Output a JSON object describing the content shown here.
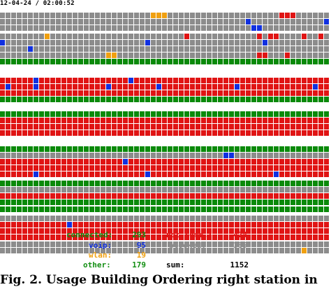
{
  "header": {
    "timestamp": "12-04-24 / 02:00:52"
  },
  "colors": {
    "connected": "#0a8a0a",
    "voip": "#1030e0",
    "wlan": "#f0a010",
    "not_comm": "#e01414",
    "blocked": "#8c8c8c",
    "other": "#138f13",
    "sum": "#000000"
  },
  "port_color_codes": {
    "g": "#8c8c8c",
    "r": "#e01414",
    "G": "#0a8a0a",
    "b": "#1030e0",
    "o": "#f0a010"
  },
  "rows": [
    "gggggggggggggggggggggggggggoooggggggggggggggggggggrrrggggggggggggg",
    "ggggggggggggggggggggggggggggggggggggggggggggbgggggggggggggbrggrrrr",
    "gggggggggggggggggggggggggggggggggggggggggggggbbggggggggggggggggggg",
    "ggggggggoggggggggggggggggggggggggrggggggggggggrgrrggggrggrggrrgggg",
    "bgggggggggggggggggggggggggbggggggggggggggggggggbgggggggggggrrggggg",
    "gggggbgggggggggggggggggggggggggggggggggggggggggggggggggggggggggggg",
    "gggggggggggggggggggoogggggggggggggggggggggggggrrgggrggggggggggggrg",
    "GGGGGGGGGGGGGGGGGGGGGGGGGGGGGGGGGGGGGGGGGGGGGGGGGGGGGGGGGGGGGGGG",
    "rrrrrrbrrrrrrrrrrrrrrrrbrrrrrrrrrrrrrrrrrrrrrrrrrrrrrrrrrrrrrrrr",
    "rbrrrrbrrrrrrrrrrrrbrrrrrrrrbrrrrrrrrrrrrrbrrrrrrrrrrrrrbrrrrrrr",
    "rrrrrrrrrrrrrrrrrrrrrrrrrrrrrrrrrrrrrrrrrrrrrrrrrrrrrrrrrrrrrrrr",
    "GGGGGGGGGGGGGGGGGGGGGGGGGGGGGGGGGGGGGGGGGGGGGGGGGGGGGGGGGGGGGGGG",
    "GGGGGGGGGGGGGGGGGGGGGGGGGGGGGGGGGGGGGGGGGGGGGGGGGGGGGGGGGGGGGGGG",
    "rrrrrrrrrrrrrrrrrrrrrrrrrrrrrrrrrrrrrrrrrrrrrrrrrrrrrrrrrrrrrrrr",
    "rrrrrrrrrrrrrrrrrrrrrrrrrrrrrrrrrrrrrrrrrrrrrrrrrrrrrrrrrrrrrrrr",
    "rrrrrrrrrrrrrrrrrrrrrrrrrrrrrrrrrrrrrrrrrrrrrrrrrrrrrrrrrrrrrrrr",
    "GGGGGGGGGGGGGGGGGGGGGGGGGGGGGGGGGGGGGGGGGGGGGGGGGGGGGGGGGGGGGGGG",
    "ggggggggggggggggggggggggggggggggggggggggbbgggggggggggggggggbgggg",
    "rrrrrrrrrrrrrrrrrrrrrrbrrrrrrrrrrrrrrrrrrrrrrrrrrrrrrrrrrrrrrrrr",
    "rrrrrrrrrrrrrrrrrrrrrrrrrrrrrrrrrrrrrrrrrrrrrrrrrrrrrrrrrrrrrrrr",
    "rrrrrrbrrrrrrrrrrrrrrrrrrrbrrrrrrrrrrrrrrrrrrrrrrbrrrrrrrrrrrbrr",
    "GGGGGGGGGGGGGGGGGGGGGGGGGGGGGGGGGGGGGGGGGGGGGGGGGGGGGGGGGGGGGGGG",
    "gggggggggggggggggggggggggggggggggggggggggggggggggggggggggggggggg",
    "rrrrrrrrrrrrrrrrrrrrrrrrrrrrrrrrrrrrrrrrrrrrrrrrrrrrrrrrrrrrrrrr",
    "GGGGGGGGGGGGGGGGGGGGGGGGGGGGGGGGGGGGGGGGGGGGGGGGGGGGGGGGGGGGGGGG",
    "GGGGGGGGGGGGGGGGGGGGGGGGGGGGGGGGGGGGGGGGGGGGGGGGGGGGGGGGGGGGGGGG",
    "gggggggggggggggggggggggggggggggggggggggggggggggggggggggggggggggg",
    "rrrrrrrrrrrrbrrrrrrrrrrrrrrrrrrrrrrrrrrrrrrrrrrrrrrrrrrrrrrbrrrr",
    "rrrrrrrrrrrrrrrrrrrrrrrrrrrrrrrrrrrrrrrrrrrrrrrrrrrrrrrrrrrrrrrr",
    "rrrrrrrrrrrrrrrrrrrrrrrrrrrrrrrrrrrrrrrrrrrrrrrrrrrrrrrrrrrrrrrr",
    "gggggggggggggggggggggggggggggggggggggggggggggggggggggggggggggggg",
    "ggggggggggggggggggggggggggggggggggggggggggggggggggggggoggggggggg"
  ],
  "stats": {
    "connected": {
      "label": "connected:",
      "value": "293"
    },
    "voip": {
      "label": "voip:",
      "value": "95"
    },
    "wlan": {
      "label": "wlan:",
      "value": "19"
    },
    "other": {
      "label": "other:",
      "value": "179"
    },
    "not_comm": {
      "label": "not comm.:",
      "value": "474"
    },
    "blocked": {
      "label": "blocked:",
      "value": "385"
    },
    "sum": {
      "label": "sum:",
      "value": "1152"
    }
  },
  "caption": "Fig. 2.  Usage Building Ordering right station in"
}
